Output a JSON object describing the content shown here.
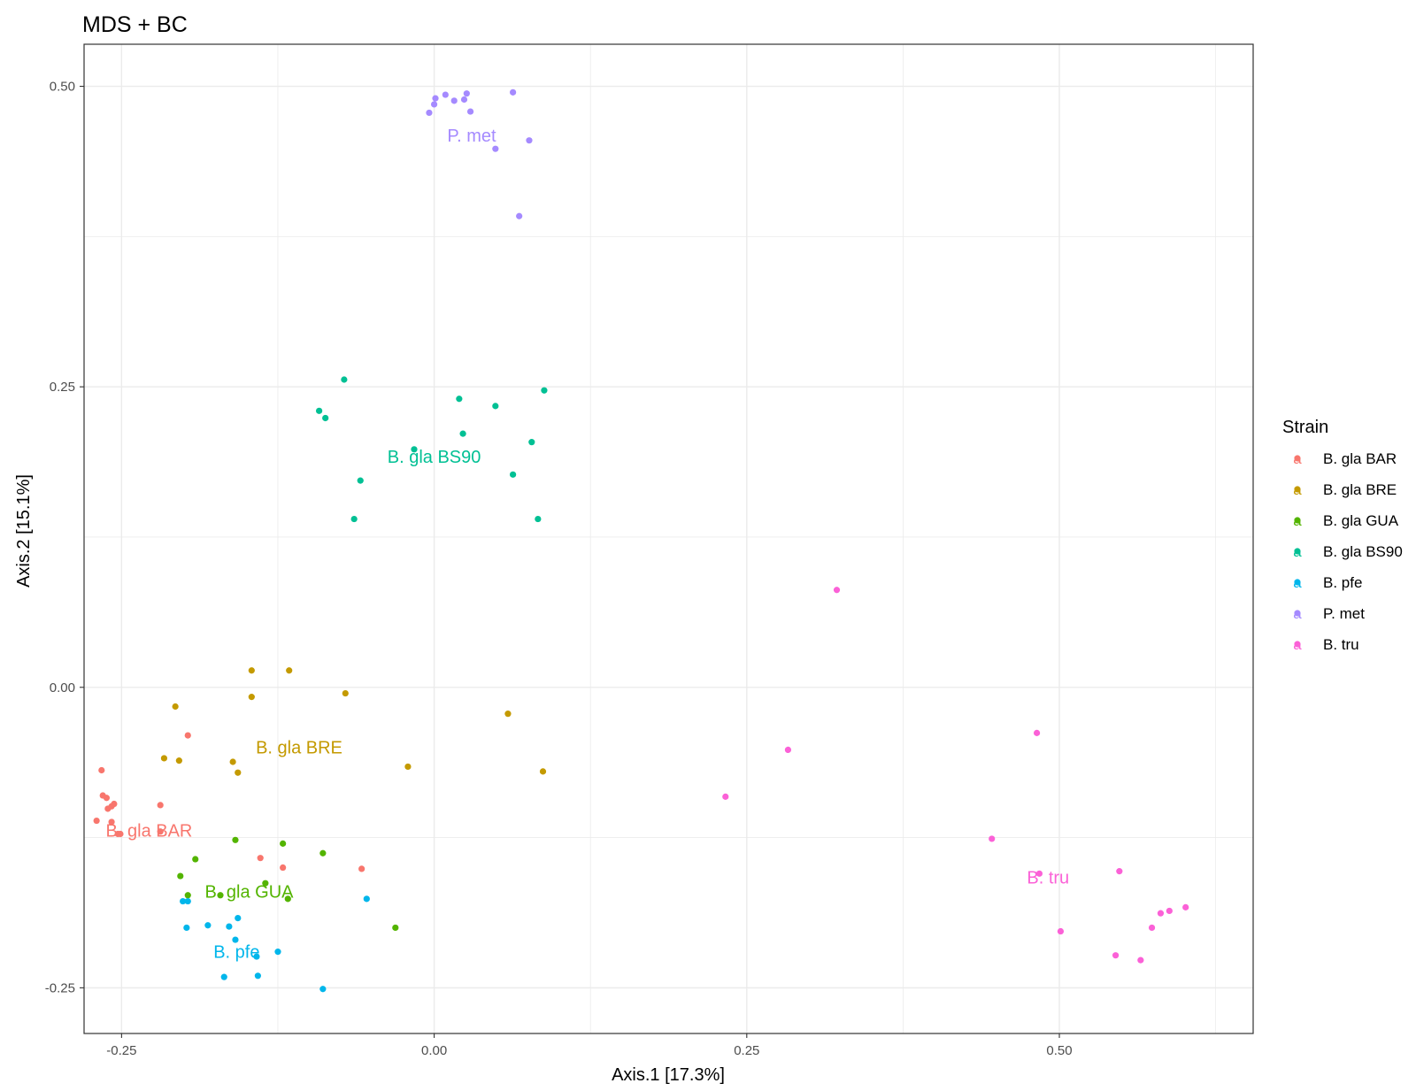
{
  "chart_data": {
    "type": "scatter",
    "title": "MDS + BC",
    "xlabel": "Axis.1   [17.3%]",
    "ylabel": "Axis.2   [15.1%]",
    "xlim": [
      -0.28,
      0.655
    ],
    "ylim": [
      -0.288,
      0.535
    ],
    "x_ticks": [
      -0.25,
      0.0,
      0.25,
      0.5
    ],
    "x_tick_labels": [
      "-0.25",
      "0.00",
      "0.25",
      "0.50"
    ],
    "y_ticks": [
      -0.25,
      0.0,
      0.25,
      0.5
    ],
    "y_tick_labels": [
      "-0.25",
      "0.00",
      "0.25",
      "0.50"
    ],
    "grid": true,
    "legend": {
      "title": "Strain",
      "position": "right",
      "key_glyph": "a"
    },
    "series": [
      {
        "name": "B. gla BAR",
        "color": "#F8766D",
        "label": "B. gla BAR",
        "label_pos": [
          -0.228,
          -0.119
        ],
        "points": [
          [
            -0.266,
            -0.069
          ],
          [
            -0.265,
            -0.09
          ],
          [
            -0.262,
            -0.092
          ],
          [
            -0.261,
            -0.101
          ],
          [
            -0.258,
            -0.099
          ],
          [
            -0.256,
            -0.097
          ],
          [
            -0.27,
            -0.111
          ],
          [
            -0.258,
            -0.112
          ],
          [
            -0.253,
            -0.122
          ],
          [
            -0.251,
            -0.122
          ],
          [
            -0.219,
            -0.098
          ],
          [
            -0.219,
            -0.12
          ],
          [
            -0.197,
            -0.04
          ],
          [
            -0.139,
            -0.142
          ],
          [
            -0.121,
            -0.15
          ],
          [
            -0.058,
            -0.151
          ]
        ]
      },
      {
        "name": "B. gla BRE",
        "color": "#C49A00",
        "label": "B. gla BRE",
        "label_pos": [
          -0.108,
          -0.05
        ],
        "points": [
          [
            -0.146,
            0.014
          ],
          [
            -0.116,
            0.014
          ],
          [
            -0.146,
            -0.008
          ],
          [
            -0.071,
            -0.005
          ],
          [
            -0.207,
            -0.016
          ],
          [
            -0.216,
            -0.059
          ],
          [
            -0.204,
            -0.061
          ],
          [
            -0.161,
            -0.062
          ],
          [
            -0.157,
            -0.071
          ],
          [
            -0.021,
            -0.066
          ],
          [
            0.059,
            -0.022
          ],
          [
            0.087,
            -0.07
          ]
        ]
      },
      {
        "name": "B. gla GUA",
        "color": "#53B400",
        "label": "B. gla GUA",
        "label_pos": [
          -0.148,
          -0.17
        ],
        "points": [
          [
            -0.159,
            -0.127
          ],
          [
            -0.121,
            -0.13
          ],
          [
            -0.089,
            -0.138
          ],
          [
            -0.191,
            -0.143
          ],
          [
            -0.203,
            -0.157
          ],
          [
            -0.135,
            -0.163
          ],
          [
            -0.197,
            -0.173
          ],
          [
            -0.171,
            -0.173
          ],
          [
            -0.117,
            -0.176
          ],
          [
            -0.031,
            -0.2
          ]
        ]
      },
      {
        "name": "B. gla BS90",
        "color": "#00C094",
        "label": "B. gla BS90",
        "label_pos": [
          0.0,
          0.192
        ],
        "points": [
          [
            -0.072,
            0.256
          ],
          [
            -0.092,
            0.23
          ],
          [
            -0.087,
            0.224
          ],
          [
            0.02,
            0.24
          ],
          [
            0.049,
            0.234
          ],
          [
            0.088,
            0.247
          ],
          [
            0.023,
            0.211
          ],
          [
            -0.016,
            0.198
          ],
          [
            0.078,
            0.204
          ],
          [
            0.063,
            0.177
          ],
          [
            -0.059,
            0.172
          ],
          [
            -0.064,
            0.14
          ],
          [
            0.083,
            0.14
          ]
        ]
      },
      {
        "name": "B. pfe",
        "color": "#00B6EB",
        "label": "B. pfe",
        "label_pos": [
          -0.158,
          -0.22
        ],
        "points": [
          [
            -0.201,
            -0.178
          ],
          [
            -0.197,
            -0.178
          ],
          [
            -0.054,
            -0.176
          ],
          [
            -0.157,
            -0.192
          ],
          [
            -0.181,
            -0.198
          ],
          [
            -0.198,
            -0.2
          ],
          [
            -0.164,
            -0.199
          ],
          [
            -0.159,
            -0.21
          ],
          [
            -0.125,
            -0.22
          ],
          [
            -0.142,
            -0.224
          ],
          [
            -0.168,
            -0.241
          ],
          [
            -0.141,
            -0.24
          ],
          [
            -0.089,
            -0.251
          ]
        ]
      },
      {
        "name": "P. met",
        "color": "#A58AFF",
        "label": "P. met",
        "label_pos": [
          0.03,
          0.459
        ],
        "points": [
          [
            0.063,
            0.495
          ],
          [
            0.009,
            0.493
          ],
          [
            0.026,
            0.494
          ],
          [
            0.001,
            0.49
          ],
          [
            0.016,
            0.488
          ],
          [
            0.024,
            0.489
          ],
          [
            0.0,
            0.485
          ],
          [
            0.029,
            0.479
          ],
          [
            -0.004,
            0.478
          ],
          [
            0.076,
            0.455
          ],
          [
            0.049,
            0.448
          ],
          [
            0.068,
            0.392
          ]
        ]
      },
      {
        "name": "B. tru",
        "color": "#FB61D7",
        "label": "B. tru",
        "label_pos": [
          0.491,
          -0.158
        ],
        "points": [
          [
            0.322,
            0.081
          ],
          [
            0.482,
            -0.038
          ],
          [
            0.283,
            -0.052
          ],
          [
            0.233,
            -0.091
          ],
          [
            0.446,
            -0.126
          ],
          [
            0.548,
            -0.153
          ],
          [
            0.484,
            -0.155
          ],
          [
            0.601,
            -0.183
          ],
          [
            0.588,
            -0.186
          ],
          [
            0.581,
            -0.188
          ],
          [
            0.574,
            -0.2
          ],
          [
            0.501,
            -0.203
          ],
          [
            0.545,
            -0.223
          ],
          [
            0.565,
            -0.227
          ]
        ]
      }
    ]
  }
}
